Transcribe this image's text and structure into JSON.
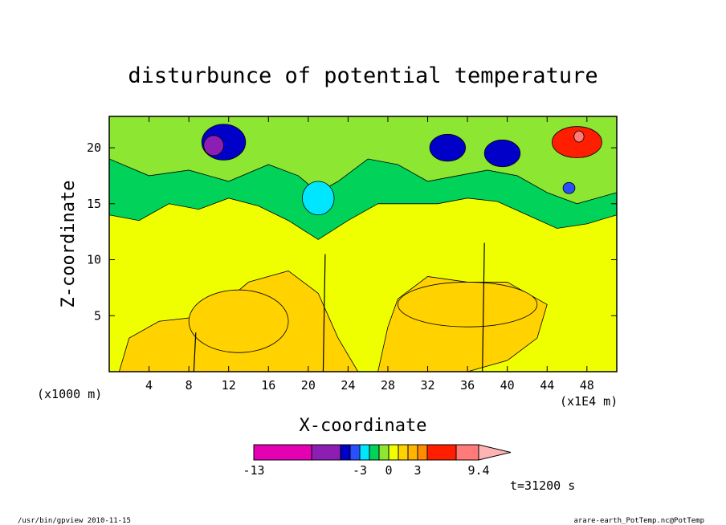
{
  "chart_data": {
    "type": "heatmap",
    "title": "disturbunce of potential temperature",
    "xlabel": "X-coordinate",
    "ylabel": "Z-coordinate",
    "x_unit_left": "(x1000 m)",
    "x_unit_right": "(x1E4 m)",
    "xlim": [
      0,
      51
    ],
    "ylim": [
      0,
      22.8
    ],
    "x_ticks": [
      4,
      8,
      12,
      16,
      20,
      24,
      28,
      32,
      36,
      40,
      44,
      48
    ],
    "y_ticks": [
      5,
      10,
      15,
      20
    ],
    "time_label": "t=31200 s",
    "footer_left": "/usr/bin/gpview  2010-11-15",
    "footer_right": "arare-earth_PotTemp.nc@PotTemp",
    "colorbar": {
      "labels": [
        {
          "text": "-13",
          "value": -13
        },
        {
          "text": "-3",
          "value": -3
        },
        {
          "text": "0",
          "value": 0
        },
        {
          "text": "3",
          "value": 3
        },
        {
          "text": "9.4",
          "value": 9.4
        }
      ],
      "bins": [
        {
          "min": -13,
          "max": -8,
          "color": "#e600b4"
        },
        {
          "min": -8,
          "max": -5,
          "color": "#8c1eb4"
        },
        {
          "min": -5,
          "max": -4,
          "color": "#0000c8"
        },
        {
          "min": -4,
          "max": -3,
          "color": "#2850ff"
        },
        {
          "min": -3,
          "max": -2,
          "color": "#00e6ff"
        },
        {
          "min": -2,
          "max": -1,
          "color": "#00d25a"
        },
        {
          "min": -1,
          "max": 0,
          "color": "#8ce632"
        },
        {
          "min": 0,
          "max": 1,
          "color": "#f0ff00"
        },
        {
          "min": 1,
          "max": 2,
          "color": "#ffd200"
        },
        {
          "min": 2,
          "max": 3,
          "color": "#ffb400"
        },
        {
          "min": 3,
          "max": 4,
          "color": "#ff8c00"
        },
        {
          "min": 4,
          "max": 6,
          "color": "#ff1e00"
        },
        {
          "min": 6,
          "max": 9.4,
          "color": "#ff7a78"
        }
      ],
      "over_color": "#ffb4b4"
    },
    "regions": [
      {
        "level": "-5..-4",
        "color": "#0000c8",
        "cx": 11.5,
        "cz": 20.5,
        "rx": 2.2,
        "rz": 1.6
      },
      {
        "level": "-8..-5",
        "color": "#8c1eb4",
        "cx": 10.5,
        "cz": 20.2,
        "rx": 1.0,
        "rz": 0.9
      },
      {
        "level": "-5..-4",
        "color": "#0000c8",
        "cx": 34.0,
        "cz": 20.0,
        "rx": 1.8,
        "rz": 1.2
      },
      {
        "level": "-5..-4",
        "color": "#0000c8",
        "cx": 39.5,
        "cz": 19.5,
        "rx": 1.8,
        "rz": 1.2
      },
      {
        "level": "-3..-2",
        "color": "#00e6ff",
        "cx": 21.0,
        "cz": 15.5,
        "rx": 1.6,
        "rz": 1.5
      },
      {
        "level": "4..6",
        "color": "#ff1e00",
        "cx": 47.0,
        "cz": 20.5,
        "rx": 2.5,
        "rz": 1.4
      },
      {
        "level": "6..9.4",
        "color": "#ff7a78",
        "cx": 47.2,
        "cz": 21.0,
        "rx": 0.5,
        "rz": 0.5
      },
      {
        "level": "-4..-3",
        "color": "#2850ff",
        "cx": 46.2,
        "cz": 16.4,
        "rx": 0.6,
        "rz": 0.5
      },
      {
        "level": "1..2",
        "color": "#ffd200",
        "cx": 13.0,
        "cz": 4.5,
        "rx": 5.0,
        "rz": 2.8
      },
      {
        "level": "1..2",
        "color": "#ffd200",
        "cx": 36.0,
        "cz": 6.0,
        "rx": 7.0,
        "rz": 2.0
      }
    ]
  }
}
